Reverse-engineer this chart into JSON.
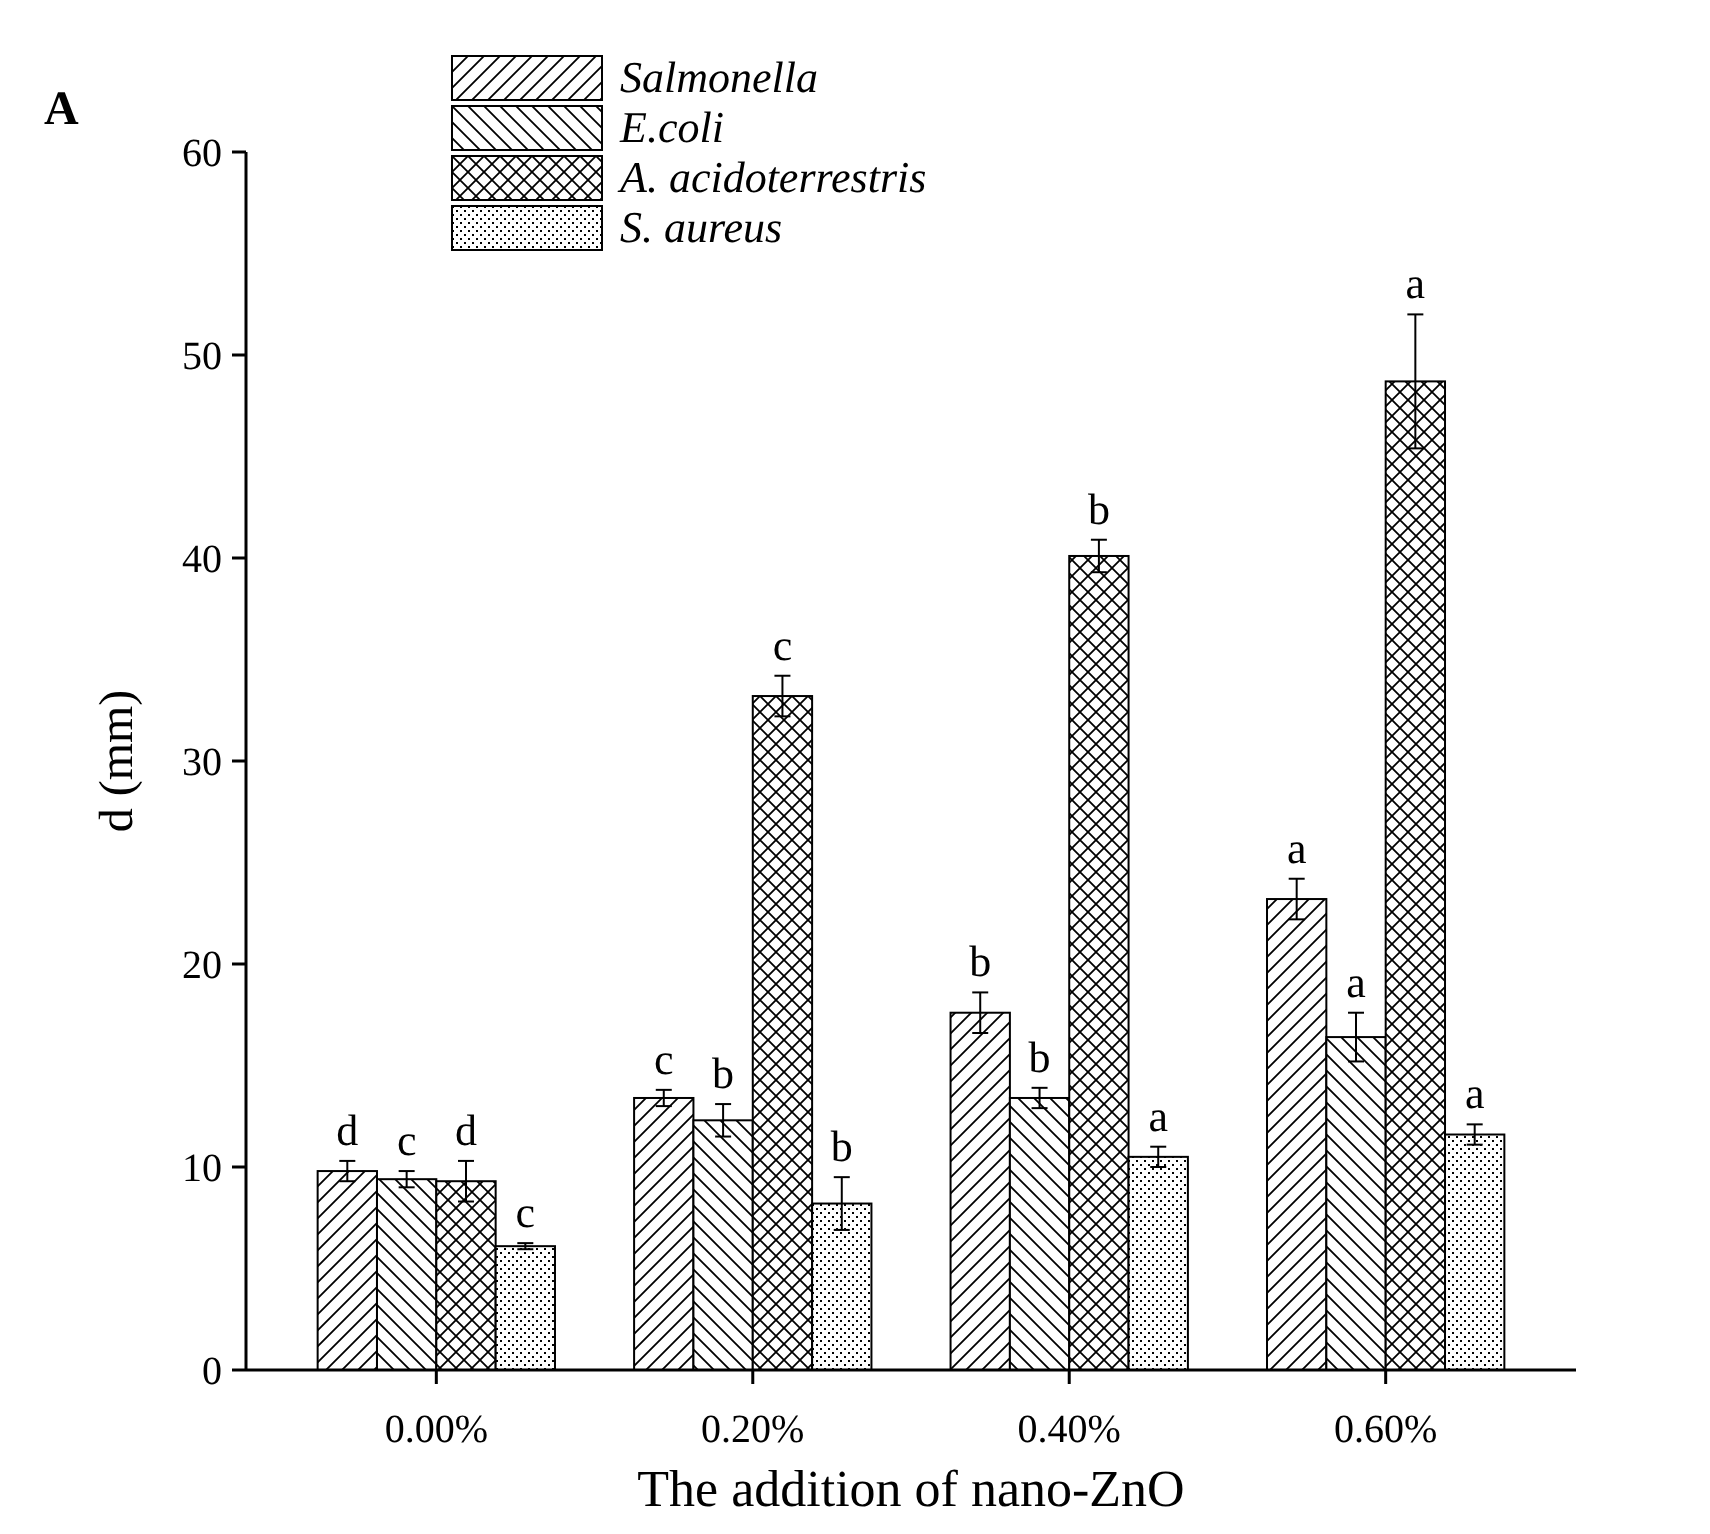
{
  "chart_data": {
    "type": "bar",
    "xlabel": "The addition of nano-ZnO",
    "ylabel": "d (mm)",
    "categories": [
      "0.00%",
      "0.20%",
      "0.40%",
      "0.60%"
    ],
    "series": [
      {
        "name": "Salmonella",
        "color": "#000000",
        "values": [
          9.8,
          13.4,
          17.6,
          23.2
        ],
        "errors": [
          0.5,
          0.4,
          1.0,
          1.0
        ],
        "value_labels": [
          "d",
          "c",
          "b",
          "a"
        ]
      },
      {
        "name": "E.coli",
        "color": "#000000",
        "values": [
          9.4,
          12.3,
          13.4,
          16.4
        ],
        "errors": [
          0.4,
          0.8,
          0.5,
          1.2
        ],
        "value_labels": [
          "c",
          "b",
          "b",
          "a"
        ]
      },
      {
        "name": "A. acidoterrestris",
        "color": "#000000",
        "values": [
          9.3,
          33.2,
          40.1,
          48.7
        ],
        "errors": [
          1.0,
          1.0,
          0.8,
          3.3
        ],
        "value_labels": [
          "d",
          "c",
          "b",
          "a"
        ]
      },
      {
        "name": "S. aureus",
        "color": "#000000",
        "values": [
          6.1,
          8.2,
          10.5,
          11.6
        ],
        "errors": [
          0.15,
          1.3,
          0.5,
          0.5
        ],
        "value_labels": [
          "c",
          "b",
          "a",
          "a"
        ]
      }
    ],
    "ylim": [
      0,
      60
    ],
    "yticks": [
      0,
      10,
      20,
      30,
      40,
      50,
      60
    ],
    "grid": false,
    "legend": "top",
    "annotations": [
      "A"
    ]
  }
}
